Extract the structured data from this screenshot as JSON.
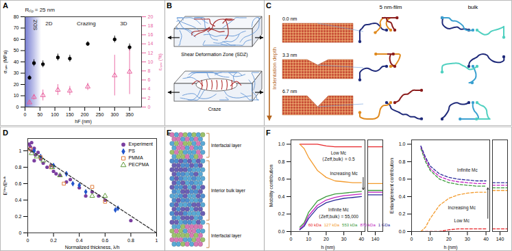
{
  "chart_data": [
    {
      "panel": "A",
      "type": "scatter",
      "title": "Rₜᵢₚ = 25 nm",
      "xlabel": "hF (nm)",
      "ylabel": "σₘₐₓ (MPa)",
      "y2label": "εₘₐₓ (%)",
      "x": [
        15,
        30,
        60,
        110,
        150,
        210,
        300,
        350
      ],
      "xlim": [
        0,
        390
      ],
      "xticks": [
        0,
        50,
        100,
        150,
        200,
        250,
        300,
        350
      ],
      "ylim": [
        0,
        80
      ],
      "yticks": [
        0,
        10,
        20,
        30,
        40,
        50,
        60,
        70,
        80
      ],
      "y2lim": [
        0,
        20
      ],
      "y2ticks": [
        0,
        2,
        4,
        6,
        8,
        10,
        12,
        14,
        16,
        18,
        20
      ],
      "series": [
        {
          "axis": "y",
          "color": "#000000",
          "marker": "circle",
          "values": [
            26,
            39,
            38,
            44,
            43,
            56,
            60,
            53
          ],
          "error": [
            2,
            3,
            3,
            3,
            3,
            2,
            3,
            3
          ]
        },
        {
          "axis": "y2",
          "color": "#e8609e",
          "marker": "triangle-open",
          "values": [
            1.0,
            2.2,
            2.6,
            3.8,
            3.6,
            4.5,
            7.0,
            7.8
          ],
          "error": [
            0.3,
            0.6,
            1.2,
            1.2,
            1.0,
            0.8,
            4.5,
            5.0
          ]
        }
      ],
      "band": {
        "label": "SDZ",
        "x": [
          0,
          55
        ],
        "color": "#5a62c8"
      },
      "annotations": [
        {
          "text": "2D",
          "x": 80,
          "y": 74
        },
        {
          "text": "Crazing",
          "x": 205,
          "y": 74
        },
        {
          "text": "3D",
          "x": 330,
          "y": 74
        }
      ]
    },
    {
      "panel": "D",
      "type": "scatter",
      "xlabel": "Normalized thickness, λ/h",
      "ylabel": "Eᶠⁱˡᵐ/Eᵇᵘˡᵏ",
      "xlim": [
        0,
        1
      ],
      "xticks": [
        0,
        0.2,
        0.4,
        0.6,
        0.8,
        1
      ],
      "ylim": [
        0,
        1.15
      ],
      "yticks": [
        0,
        0.2,
        0.4,
        0.6,
        0.8,
        1
      ],
      "legend": "top-right",
      "series": [
        {
          "name": "Experiment",
          "color": "#7b3fa0",
          "marker": "circle",
          "x": [
            0.01,
            0.02,
            0.03,
            0.03,
            0.05,
            0.05,
            0.06,
            0.08,
            0.1,
            0.12,
            0.15,
            0.18,
            0.2,
            0.22,
            0.25,
            0.3,
            0.33,
            0.4,
            0.45,
            0.5,
            0.55,
            0.6,
            0.8
          ],
          "values": [
            1.08,
            1.05,
            1.0,
            1.1,
            1.03,
            0.88,
            0.95,
            0.98,
            0.9,
            0.85,
            0.8,
            0.82,
            0.75,
            0.72,
            0.7,
            0.62,
            0.65,
            0.55,
            0.45,
            0.5,
            0.45,
            0.4,
            0.15
          ]
        },
        {
          "name": "PS",
          "color": "#2255cc",
          "marker": "diamond",
          "x": [
            0.05,
            0.1,
            0.2,
            0.3,
            0.35,
            0.4,
            0.45,
            0.68,
            0.7
          ],
          "values": [
            1.0,
            0.93,
            0.82,
            0.72,
            0.6,
            0.58,
            0.5,
            0.28,
            0.3
          ]
        },
        {
          "name": "PMMA",
          "color": "#e07b39",
          "marker": "square-open",
          "x": [
            0.02,
            0.1,
            0.18,
            0.28,
            0.5,
            0.6
          ],
          "values": [
            1.02,
            0.92,
            0.8,
            0.6,
            0.56,
            0.38
          ]
        },
        {
          "name": "PECPMA",
          "color": "#5f9a3a",
          "marker": "triangle-open",
          "x": [
            0.03,
            0.07,
            0.12,
            0.19,
            0.25,
            0.5,
            0.6
          ],
          "values": [
            0.97,
            0.93,
            0.88,
            0.8,
            0.7,
            0.45,
            0.45
          ]
        },
        {
          "type": "line",
          "line_style": "dashed",
          "color": "#333333",
          "x": [
            0,
            1
          ],
          "values": [
            1.03,
            0
          ]
        }
      ]
    },
    {
      "panel": "F",
      "type": "line",
      "xlabel": "h (nm)",
      "ylabel": "Mobility contribution",
      "x": [
        5,
        7.5,
        10,
        15,
        20,
        25,
        30,
        35,
        40
      ],
      "xlim": [
        0,
        42
      ],
      "xticks": [
        0,
        10,
        20,
        30,
        40
      ],
      "ylim": [
        0,
        1.05
      ],
      "yticks": [
        {
          "value": 0,
          "label": "0.0"
        },
        {
          "value": 0.2,
          "label": "0.2"
        },
        {
          "value": 0.4,
          "label": "0.4"
        },
        {
          "value": 0.6,
          "label": "0.6"
        },
        {
          "value": 0.8,
          "label": "0.8"
        },
        {
          "value": 1,
          "label": "1.0"
        }
      ],
      "legend": "bottom",
      "series": [
        {
          "name": "60 kDa",
          "color": "#e8262a",
          "line_style": "solid",
          "values": [
            1,
            1,
            1,
            1,
            0.98,
            0.97,
            0.97,
            0.97,
            0.97
          ]
        },
        {
          "name": "127 kDa",
          "color": "#f39a2b",
          "line_style": "solid",
          "values": [
            1,
            0.95,
            0.85,
            0.7,
            0.62,
            0.58,
            0.57,
            0.56,
            0.56
          ]
        },
        {
          "name": "553 kDa",
          "color": "#3a9a3a",
          "line_style": "solid",
          "values": [
            0.05,
            0.1,
            0.22,
            0.35,
            0.4,
            0.43,
            0.44,
            0.45,
            0.46
          ]
        },
        {
          "name": "870 kDa",
          "color": "#c020c0",
          "line_style": "solid",
          "values": [
            0.03,
            0.08,
            0.18,
            0.3,
            0.36,
            0.39,
            0.41,
            0.42,
            0.43
          ]
        },
        {
          "name": "1 GDa",
          "color": "#2a2a9a",
          "line_style": "solid",
          "values": [
            0.02,
            0.06,
            0.15,
            0.27,
            0.33,
            0.36,
            0.38,
            0.39,
            0.4
          ]
        }
      ],
      "annotations": [
        {
          "text": "Low Mc",
          "x": 27,
          "y": 0.9
        },
        {
          "text": "⟨Zeff,bulk⟩ = 0.5",
          "x": 27,
          "y": 0.83
        },
        {
          "text": "Increasing Mc",
          "x": 30,
          "y": 0.66
        },
        {
          "text": "Infinite Mc",
          "x": 27,
          "y": 0.25
        },
        {
          "text": "⟨Zeff,bulk⟩ = 55,000",
          "x": 27,
          "y": 0.17
        }
      ],
      "arrows": [
        {
          "x1": 41,
          "y1": 0.62,
          "x2": 41,
          "y2": 0.48
        }
      ]
    },
    {
      "type": "line",
      "x": [
        136,
        144
      ],
      "xlim": [
        136,
        144
      ],
      "xticks": [
        140
      ],
      "ylim": [
        0,
        1.05
      ],
      "tick_labels": "x",
      "series": [
        {
          "color": "#e8262a",
          "line_style": "solid",
          "values": [
            0.97,
            0.97
          ]
        },
        {
          "color": "#f39a2b",
          "line_style": "solid",
          "values": [
            0.55,
            0.55
          ]
        },
        {
          "color": "#3a9a3a",
          "line_style": "solid",
          "values": [
            0.47,
            0.47
          ]
        },
        {
          "color": "#c020c0",
          "line_style": "solid",
          "values": [
            0.45,
            0.45
          ]
        },
        {
          "color": "#2a2a9a",
          "line_style": "solid",
          "values": [
            0.42,
            0.42
          ]
        }
      ]
    },
    {
      "type": "line",
      "xlabel": "h (nm)",
      "ylabel": "Entanglement contribution",
      "x": [
        5,
        7.5,
        10,
        15,
        20,
        25,
        30,
        35,
        40
      ],
      "xlim": [
        0,
        42
      ],
      "xticks": [
        0,
        10,
        20,
        30,
        40
      ],
      "ylim": [
        0,
        1.05
      ],
      "yticks": [
        {
          "value": 0,
          "label": "0.0"
        },
        {
          "value": 0.2,
          "label": "0.2"
        },
        {
          "value": 0.4,
          "label": "0.4"
        },
        {
          "value": 0.6,
          "label": "0.6"
        },
        {
          "value": 0.8,
          "label": "0.8"
        },
        {
          "value": 1,
          "label": "1.0"
        }
      ],
      "series": [
        {
          "color": "#e8262a",
          "line_style": "dashed",
          "values": [
            0,
            0,
            0,
            0,
            0.02,
            0.03,
            0.03,
            0.03,
            0.03
          ]
        },
        {
          "color": "#f39a2b",
          "line_style": "dashed",
          "values": [
            0,
            0.05,
            0.15,
            0.3,
            0.38,
            0.42,
            0.44,
            0.45,
            0.45
          ]
        },
        {
          "color": "#3a9a3a",
          "line_style": "dashed",
          "values": [
            0.95,
            0.8,
            0.7,
            0.6,
            0.56,
            0.54,
            0.53,
            0.52,
            0.52
          ]
        },
        {
          "color": "#c020c0",
          "line_style": "dashed",
          "values": [
            0.97,
            0.83,
            0.72,
            0.63,
            0.59,
            0.57,
            0.56,
            0.55,
            0.55
          ]
        },
        {
          "color": "#2a2a9a",
          "line_style": "dashed",
          "values": [
            0.98,
            0.85,
            0.75,
            0.66,
            0.62,
            0.6,
            0.59,
            0.58,
            0.58
          ]
        }
      ],
      "annotations": [
        {
          "text": "Infinite Mc",
          "x": 30,
          "y": 0.7
        },
        {
          "text": "Increasing Mc",
          "x": 27,
          "y": 0.27
        },
        {
          "text": "Low Mc",
          "x": 27,
          "y": 0.12
        }
      ],
      "arrows": [
        {
          "x1": 41,
          "y1": 0.15,
          "x2": 41,
          "y2": 0.5
        }
      ]
    },
    {
      "type": "line",
      "x": [
        136,
        144
      ],
      "xlim": [
        136,
        144
      ],
      "xticks": [
        140
      ],
      "ylim": [
        0,
        1.05
      ],
      "tick_labels": "x",
      "series": [
        {
          "color": "#e8262a",
          "line_style": "dashed",
          "values": [
            0.03,
            0.03
          ]
        },
        {
          "color": "#f39a2b",
          "line_style": "dashed",
          "values": [
            0.47,
            0.47
          ]
        },
        {
          "color": "#3a9a3a",
          "line_style": "dashed",
          "values": [
            0.5,
            0.5
          ]
        },
        {
          "color": "#c020c0",
          "line_style": "dashed",
          "values": [
            0.53,
            0.53
          ]
        },
        {
          "color": "#2a2a9a",
          "line_style": "dashed",
          "values": [
            0.56,
            0.56
          ]
        }
      ]
    }
  ],
  "diagrams": [
    {
      "panel": "B",
      "labels": [
        "Shear Deformation Zone (SDZ)",
        "Craze"
      ]
    },
    {
      "panel": "C",
      "columns": [
        "5 nm-film",
        "bulk"
      ],
      "axis_label": "Indentation depth",
      "rows": [
        "0.0 nm",
        "3.3 nm",
        "6.7 nm"
      ]
    },
    {
      "panel": "E",
      "layers": [
        "Interfacial layer",
        "Interior bulk layer",
        "Interfacial layer"
      ]
    }
  ]
}
